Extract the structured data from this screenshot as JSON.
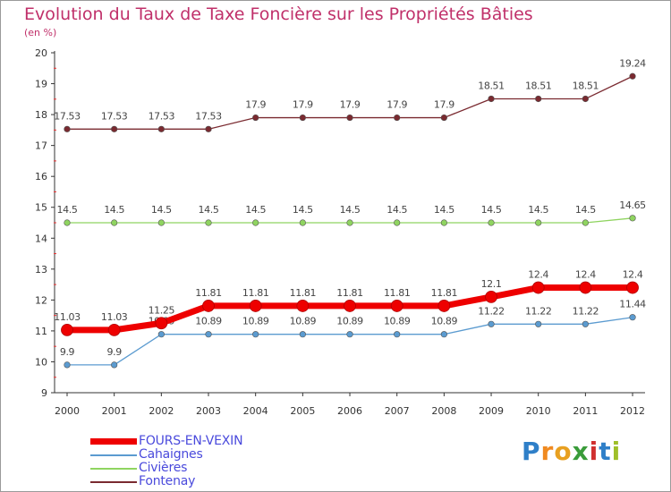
{
  "title": "Evolution du Taux de Taxe Foncière sur les Propriétés Bâties",
  "subtitle": "(en %)",
  "brand": {
    "text": "Proxiti",
    "letters": [
      "P",
      "r",
      "o",
      "x",
      "i",
      "t",
      "i"
    ],
    "colors": [
      "#2f7fc8",
      "#f08a20",
      "#e8a020",
      "#3a9c3a",
      "#d03030",
      "#2f7fc8",
      "#9fbf2a"
    ]
  },
  "chart_data": {
    "type": "line",
    "title": "Evolution du Taux de Taxe Foncière sur les Propriétés Bâties",
    "ylabel": "(en %)",
    "xlabel": "",
    "ylim": [
      9,
      20
    ],
    "yticks": [
      9,
      10,
      11,
      12,
      13,
      14,
      15,
      16,
      17,
      18,
      19,
      20
    ],
    "x": [
      "2000",
      "2001",
      "2002",
      "2003",
      "2004",
      "2005",
      "2006",
      "2007",
      "2008",
      "2009",
      "2010",
      "2011",
      "2012"
    ],
    "grid": false,
    "legend": "bottom-left",
    "series": [
      {
        "name": "Fontenay",
        "color": "#7a2a30",
        "labels": [
          "17.53",
          "17.53",
          "17.53",
          "17.53",
          "17.9",
          "17.9",
          "17.9",
          "17.9",
          "17.9",
          "18.51",
          "18.51",
          "18.51",
          "19.24"
        ],
        "values": [
          17.53,
          17.53,
          17.53,
          17.53,
          17.9,
          17.9,
          17.9,
          17.9,
          17.9,
          18.51,
          18.51,
          18.51,
          19.24
        ]
      },
      {
        "name": "Civières",
        "color": "#8fd460",
        "labels": [
          "14.5",
          "14.5",
          "14.5",
          "14.5",
          "14.5",
          "14.5",
          "14.5",
          "14.5",
          "14.5",
          "14.5",
          "14.5",
          "14.5",
          "14.65"
        ],
        "values": [
          14.5,
          14.5,
          14.5,
          14.5,
          14.5,
          14.5,
          14.5,
          14.5,
          14.5,
          14.5,
          14.5,
          14.5,
          14.65
        ]
      },
      {
        "name": "Cahaignes",
        "color": "#5b9bd0",
        "labels": [
          "9.9",
          "9.9",
          "10.89",
          "10.89",
          "10.89",
          "10.89",
          "10.89",
          "10.89",
          "10.89",
          "11.22",
          "11.22",
          "11.22",
          "11.44"
        ],
        "values": [
          9.9,
          9.9,
          10.89,
          10.89,
          10.89,
          10.89,
          10.89,
          10.89,
          10.89,
          11.22,
          11.22,
          11.22,
          11.44
        ]
      },
      {
        "name": "FOURS-EN-VEXIN",
        "color": "#ee0000",
        "labels": [
          "11.03",
          "11.03",
          "11.25",
          "11.81",
          "11.81",
          "11.81",
          "11.81",
          "11.81",
          "11.81",
          "12.1",
          "12.4",
          "12.4",
          "12.4"
        ],
        "values": [
          11.03,
          11.03,
          11.25,
          11.81,
          11.81,
          11.81,
          11.81,
          11.81,
          11.81,
          12.1,
          12.4,
          12.4,
          12.4
        ]
      }
    ]
  },
  "legend": [
    {
      "name": "FOURS-EN-VEXIN",
      "color": "#ee0000",
      "label_color": "#4a4adc"
    },
    {
      "name": "Cahaignes",
      "color": "#5b9bd0",
      "label_color": "#4a4adc"
    },
    {
      "name": "Civières",
      "color": "#8fd460",
      "label_color": "#4a4adc"
    },
    {
      "name": "Fontenay",
      "color": "#7a2a30",
      "label_color": "#4a4adc"
    }
  ]
}
